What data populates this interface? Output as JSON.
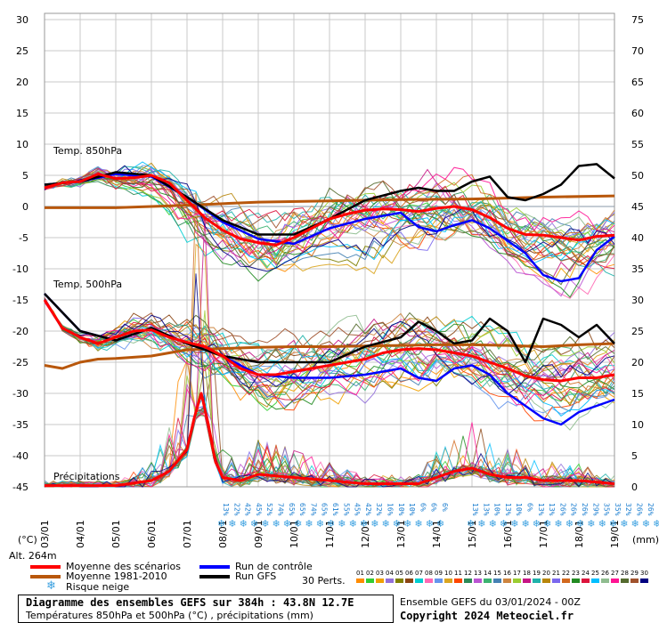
{
  "chart_data": {
    "type": "line",
    "title": "Diagramme des ensembles GEFS sur 384h : 43.8N 12.7E",
    "subtitle": "Températures 850hPa et 500hPa (°C) , précipitations (mm)",
    "left_axis": {
      "label": "(°C)",
      "ticks": [
        30,
        25,
        20,
        15,
        10,
        5,
        0,
        -5,
        -10,
        -15,
        -20,
        -25,
        -30,
        -35,
        -40,
        -45
      ],
      "range": [
        -45,
        30
      ]
    },
    "right_axis": {
      "label": "(mm)",
      "ticks": [
        75,
        70,
        65,
        60,
        55,
        50,
        45,
        40,
        35,
        30,
        25,
        20,
        15,
        10,
        5,
        0
      ],
      "range": [
        0,
        75
      ]
    },
    "x_labels": [
      "03/01",
      "04/01",
      "05/01",
      "06/01",
      "07/01",
      "08/01",
      "09/01",
      "10/01",
      "11/01",
      "12/01",
      "13/01",
      "14/01",
      "15/01",
      "16/01",
      "17/01",
      "18/01",
      "19/01"
    ],
    "panel_labels": {
      "t850": "Temp. 850hPa",
      "t500": "Temp. 500hPa",
      "precip": "Précipitations"
    },
    "snow_risk_percent": [
      "13%",
      "22%",
      "42%",
      "45%",
      "52%",
      "74%",
      "65%",
      "65%",
      "74%",
      "65%",
      "61%",
      "55%",
      "45%",
      "42%",
      "32%",
      "16%",
      "10%",
      "10%",
      "6%",
      "6%",
      "6%",
      "13%",
      "13%",
      "10%",
      "13%",
      "10%",
      "6%",
      "13%",
      "13%",
      "26%",
      "26%",
      "26%",
      "29%",
      "35%",
      "35%",
      "32%",
      "26%",
      "26%",
      "29%",
      "32%",
      "29%",
      "26%"
    ],
    "series": [
      {
        "name": "Moyenne des scénarios T850",
        "color": "#ff0000",
        "day": [
          0,
          0.5,
          1,
          1.5,
          2,
          2.5,
          3,
          3.5,
          4,
          4.5,
          5,
          5.5,
          6,
          6.5,
          7,
          7.5,
          8,
          8.5,
          9,
          9.5,
          10,
          10.5,
          11,
          11.5,
          12,
          12.5,
          13,
          13.5,
          14,
          14.5,
          15,
          15.5,
          16
        ],
        "values": [
          3,
          3.8,
          4,
          5.2,
          4.5,
          4.6,
          5,
          3.8,
          1,
          -1.8,
          -3.8,
          -5.2,
          -5.8,
          -6.2,
          -5,
          -3.5,
          -2,
          -1.2,
          -0.6,
          -0.4,
          -0.5,
          -0.8,
          -0.3,
          0,
          -0.5,
          -1.8,
          -3.5,
          -4.5,
          -4.6,
          -5,
          -5.4,
          -4.8,
          -4.6
        ]
      },
      {
        "name": "Moyenne 1981-2010 T850",
        "color": "#b8570b",
        "day": [
          0,
          2,
          4,
          6,
          8,
          10,
          12,
          14,
          16
        ],
        "values": [
          -0.2,
          -0.2,
          0.2,
          0.7,
          0.9,
          1.1,
          1.2,
          1.5,
          1.7
        ]
      },
      {
        "name": "Run de contrôle T850",
        "color": "#0000ff",
        "day": [
          0,
          1,
          2,
          3,
          4,
          5,
          6,
          7,
          8,
          9,
          10,
          10.5,
          11,
          11.5,
          12,
          12.5,
          13,
          13.5,
          14,
          14.5,
          15,
          15.5,
          16
        ],
        "values": [
          3.5,
          4,
          5.2,
          4.8,
          1.5,
          -2.5,
          -5.2,
          -6,
          -3.5,
          -2,
          -1,
          -3.3,
          -4,
          -3,
          -2.2,
          -3.5,
          -5.5,
          -7.5,
          -11,
          -12,
          -11.5,
          -7,
          -4.8
        ]
      },
      {
        "name": "Run GFS T850",
        "color": "#000000",
        "day": [
          0,
          1,
          2,
          3,
          4,
          5,
          6,
          7,
          8,
          9,
          10,
          10.5,
          11,
          11.5,
          12,
          12.5,
          13,
          13.5,
          14,
          14.5,
          15,
          15.5,
          16
        ],
        "values": [
          3.5,
          4,
          5.5,
          5,
          1.5,
          -2.2,
          -4.5,
          -4.5,
          -2,
          1,
          2.5,
          3,
          2.5,
          2.5,
          4,
          4.8,
          1.5,
          1,
          2,
          3.5,
          6.5,
          6.8,
          4.5
        ]
      },
      {
        "name": "Moyenne des scénarios T500",
        "color": "#ff0000",
        "day": [
          0,
          0.5,
          1,
          1.5,
          2,
          2.5,
          3,
          3.5,
          4,
          4.5,
          5,
          5.5,
          6,
          6.5,
          7,
          7.5,
          8,
          8.5,
          9,
          9.5,
          10,
          10.5,
          11,
          11.5,
          12,
          12.5,
          13,
          13.5,
          14,
          14.5,
          15,
          15.5,
          16
        ],
        "values": [
          -15,
          -19.5,
          -21,
          -22,
          -21,
          -20,
          -19.8,
          -21,
          -21.8,
          -22.5,
          -24,
          -26,
          -27,
          -27,
          -26.5,
          -26,
          -25.5,
          -25,
          -24.5,
          -23.5,
          -23,
          -22.8,
          -23,
          -23.5,
          -24,
          -25,
          -26,
          -27.2,
          -27.8,
          -28,
          -27.5,
          -27.5,
          -27
        ]
      },
      {
        "name": "Moyenne 1981-2010 T500",
        "color": "#b8570b",
        "day": [
          0,
          0.5,
          1,
          1.5,
          2,
          3,
          4,
          5,
          6,
          7,
          8,
          9,
          10,
          11,
          12,
          13,
          14,
          15,
          16
        ],
        "values": [
          -25.5,
          -26,
          -25,
          -24.5,
          -24.4,
          -24,
          -23,
          -22.8,
          -22.6,
          -22.5,
          -22.5,
          -22.4,
          -22.3,
          -22.2,
          -22.2,
          -22.3,
          -22.5,
          -22.2,
          -22
        ]
      },
      {
        "name": "Run de contrôle T500",
        "color": "#0000ff",
        "day": [
          0,
          1,
          2,
          3,
          4,
          5,
          6,
          7,
          8,
          9,
          10,
          10.5,
          11,
          11.5,
          12,
          12.5,
          13,
          13.5,
          14,
          14.5,
          15,
          15.5,
          16
        ],
        "values": [
          -14,
          -20,
          -21.5,
          -19.5,
          -22,
          -24,
          -27,
          -27.5,
          -27.5,
          -27,
          -26,
          -27.5,
          -28,
          -26,
          -25.5,
          -27,
          -30,
          -32,
          -34,
          -35,
          -33,
          -32,
          -31
        ]
      },
      {
        "name": "Run GFS T500",
        "color": "#000000",
        "day": [
          0,
          1,
          2,
          3,
          4,
          5,
          6,
          7,
          8,
          9,
          10,
          10.5,
          11,
          11.5,
          12,
          12.5,
          13,
          13.5,
          14,
          14.5,
          15,
          15.5,
          16
        ],
        "values": [
          -14,
          -20,
          -21.5,
          -19.5,
          -22,
          -24,
          -25,
          -25,
          -25,
          -22.5,
          -21,
          -18.5,
          -20,
          -22,
          -21.5,
          -18,
          -20,
          -25,
          -18,
          -19,
          -21,
          -19,
          -22
        ]
      },
      {
        "name": "Moyenne des scénarios précipitations",
        "color": "#ff0000",
        "day": [
          0,
          1,
          2,
          3,
          3.5,
          4,
          4.2,
          4.4,
          4.6,
          4.8,
          5,
          5.5,
          6,
          7,
          8,
          9,
          10,
          10.5,
          11,
          11.5,
          12,
          12.5,
          13,
          13.5,
          14,
          15,
          16
        ],
        "values": [
          0.2,
          0.2,
          0.2,
          1,
          2.5,
          6,
          11,
          15,
          10,
          4,
          1.5,
          1,
          2,
          1.5,
          1,
          0.5,
          0.5,
          0.5,
          1.5,
          2.5,
          3,
          2,
          1.5,
          1.5,
          1,
          1,
          0.5
        ]
      }
    ]
  },
  "legend": {
    "mean_label": "Moyenne des scénarios",
    "clim_label": "Moyenne 1981-2010",
    "snow_label": "Risque neige",
    "control_label": "Run de contrôle",
    "gfs_label": "Run GFS",
    "perts_label": "30 Perts.",
    "pert_numbers": [
      "01",
      "02",
      "03",
      "04",
      "05",
      "06",
      "07",
      "08",
      "09",
      "10",
      "11",
      "12",
      "13",
      "14",
      "15",
      "16",
      "17",
      "18",
      "19",
      "20",
      "21",
      "22",
      "23",
      "24",
      "25",
      "26",
      "27",
      "28",
      "29",
      "30"
    ],
    "pert_colors": [
      "#ff8c00",
      "#32cd32",
      "#f0a000",
      "#9370db",
      "#808000",
      "#8b4513",
      "#00ced1",
      "#ff69b4",
      "#6495ed",
      "#daa520",
      "#ff4500",
      "#2e8b57",
      "#ba55d3",
      "#3cb371",
      "#4682b4",
      "#cd853f",
      "#9acd32",
      "#c71585",
      "#20b2aa",
      "#b8860b",
      "#7b68ee",
      "#d2691e",
      "#228b22",
      "#dc143c",
      "#00bfff",
      "#8fbc8f",
      "#ff1493",
      "#556b2f",
      "#a0522d",
      "#000080"
    ]
  },
  "altitude_label": "Alt. 264m",
  "ensemble_info": "Ensemble GEFS du 03/01/2024 - 00Z",
  "copyright": "Copyright 2024 Meteociel.fr"
}
